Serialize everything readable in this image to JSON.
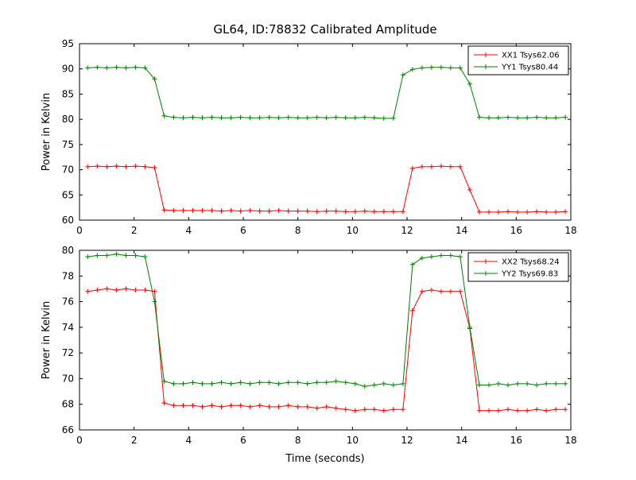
{
  "chart_data": [
    {
      "type": "line",
      "title": "GL64, ID:78832 Calibrated Amplitude",
      "xlabel": "",
      "ylabel": "Power in Kelvin",
      "xlim": [
        0,
        18
      ],
      "ylim": [
        60,
        95
      ],
      "xticks": [
        0,
        2,
        4,
        6,
        8,
        10,
        12,
        14,
        16,
        18
      ],
      "yticks": [
        60,
        65,
        70,
        75,
        80,
        85,
        90,
        95
      ],
      "grid": false,
      "legend_position": "upper right",
      "x": [
        0.3,
        0.65,
        1.0,
        1.35,
        1.7,
        2.05,
        2.4,
        2.75,
        3.1,
        3.45,
        3.8,
        4.15,
        4.5,
        4.85,
        5.2,
        5.55,
        5.9,
        6.25,
        6.6,
        6.95,
        7.3,
        7.65,
        8.0,
        8.35,
        8.7,
        9.05,
        9.4,
        9.75,
        10.1,
        10.45,
        10.8,
        11.15,
        11.5,
        11.85,
        12.2,
        12.55,
        12.9,
        13.25,
        13.6,
        13.95,
        14.3,
        14.65,
        15.0,
        15.35,
        15.7,
        16.05,
        16.4,
        16.75,
        17.1,
        17.45,
        17.8
      ],
      "series": [
        {
          "name": "XX1 Tsys62.06",
          "color": "#ff0000",
          "marker": "+",
          "values": [
            70.6,
            70.7,
            70.6,
            70.7,
            70.6,
            70.7,
            70.6,
            70.4,
            62.0,
            61.9,
            61.9,
            61.9,
            61.9,
            61.9,
            61.8,
            61.9,
            61.8,
            61.9,
            61.8,
            61.8,
            61.9,
            61.8,
            61.8,
            61.8,
            61.7,
            61.8,
            61.8,
            61.7,
            61.7,
            61.8,
            61.7,
            61.7,
            61.7,
            61.7,
            70.3,
            70.6,
            70.6,
            70.7,
            70.6,
            70.6,
            66.0,
            61.6,
            61.6,
            61.6,
            61.7,
            61.6,
            61.6,
            61.7,
            61.6,
            61.6,
            61.7
          ]
        },
        {
          "name": "YY1 Tsys80.44",
          "color": "#008000",
          "marker": "+",
          "values": [
            90.2,
            90.3,
            90.2,
            90.3,
            90.2,
            90.3,
            90.2,
            88.0,
            80.7,
            80.4,
            80.3,
            80.4,
            80.3,
            80.4,
            80.3,
            80.3,
            80.4,
            80.3,
            80.3,
            80.4,
            80.3,
            80.4,
            80.3,
            80.3,
            80.4,
            80.3,
            80.4,
            80.3,
            80.3,
            80.4,
            80.3,
            80.2,
            80.2,
            88.8,
            89.9,
            90.2,
            90.3,
            90.3,
            90.2,
            90.2,
            87.0,
            80.4,
            80.3,
            80.3,
            80.4,
            80.3,
            80.3,
            80.4,
            80.3,
            80.3,
            80.4
          ]
        }
      ]
    },
    {
      "type": "line",
      "title": "",
      "xlabel": "Time (seconds)",
      "ylabel": "Power in Kelvin",
      "xlim": [
        0,
        18
      ],
      "ylim": [
        66,
        80
      ],
      "xticks": [
        0,
        2,
        4,
        6,
        8,
        10,
        12,
        14,
        16,
        18
      ],
      "yticks": [
        66,
        68,
        70,
        72,
        74,
        76,
        78,
        80
      ],
      "grid": false,
      "legend_position": "upper right",
      "x": [
        0.3,
        0.65,
        1.0,
        1.35,
        1.7,
        2.05,
        2.4,
        2.75,
        3.1,
        3.45,
        3.8,
        4.15,
        4.5,
        4.85,
        5.2,
        5.55,
        5.9,
        6.25,
        6.6,
        6.95,
        7.3,
        7.65,
        8.0,
        8.35,
        8.7,
        9.05,
        9.4,
        9.75,
        10.1,
        10.45,
        10.8,
        11.15,
        11.5,
        11.85,
        12.2,
        12.55,
        12.9,
        13.25,
        13.6,
        13.95,
        14.3,
        14.65,
        15.0,
        15.35,
        15.7,
        16.05,
        16.4,
        16.75,
        17.1,
        17.45,
        17.8
      ],
      "series": [
        {
          "name": "XX2 Tsys68.24",
          "color": "#ff0000",
          "marker": "+",
          "values": [
            76.8,
            76.9,
            77.0,
            76.9,
            77.0,
            76.9,
            76.9,
            76.8,
            68.1,
            67.9,
            67.9,
            67.9,
            67.8,
            67.9,
            67.8,
            67.9,
            67.9,
            67.8,
            67.9,
            67.8,
            67.8,
            67.9,
            67.8,
            67.8,
            67.7,
            67.8,
            67.7,
            67.6,
            67.5,
            67.6,
            67.6,
            67.5,
            67.6,
            67.6,
            75.3,
            76.8,
            76.9,
            76.8,
            76.8,
            76.8,
            73.9,
            67.5,
            67.5,
            67.5,
            67.6,
            67.5,
            67.5,
            67.6,
            67.5,
            67.6,
            67.6
          ]
        },
        {
          "name": "YY2 Tsys69.83",
          "color": "#008000",
          "marker": "+",
          "values": [
            79.5,
            79.6,
            79.6,
            79.7,
            79.6,
            79.6,
            79.5,
            76.0,
            69.8,
            69.6,
            69.6,
            69.7,
            69.6,
            69.6,
            69.7,
            69.6,
            69.7,
            69.6,
            69.7,
            69.7,
            69.6,
            69.7,
            69.7,
            69.6,
            69.7,
            69.7,
            69.8,
            69.7,
            69.6,
            69.4,
            69.5,
            69.6,
            69.5,
            69.6,
            78.9,
            79.4,
            79.5,
            79.6,
            79.6,
            79.5,
            74.0,
            69.5,
            69.5,
            69.6,
            69.5,
            69.6,
            69.6,
            69.5,
            69.6,
            69.6,
            69.6
          ]
        }
      ]
    }
  ]
}
